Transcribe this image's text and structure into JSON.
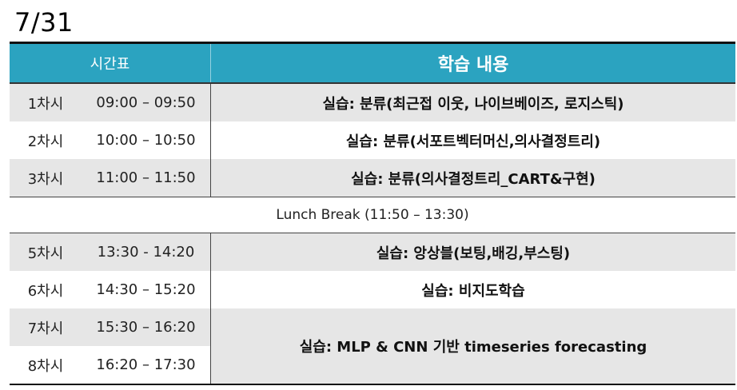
{
  "date": "7/31",
  "header": {
    "schedule": "시간표",
    "content": "학습 내용"
  },
  "rows": [
    {
      "period": "1차시",
      "time": "09:00 – 09:50",
      "content": "실습: 분류(최근접 이웃, 나이브베이즈, 로지스틱)"
    },
    {
      "period": "2차시",
      "time": "10:00 – 10:50",
      "content": "실습: 분류(서포트벡터머신,의사결정트리)"
    },
    {
      "period": "3차시",
      "time": "11:00 – 11:50",
      "content": "실습: 분류(의사결정트리_CART&구현)"
    }
  ],
  "lunch": "Lunch  Break  (11:50 – 13:30)",
  "rows2": [
    {
      "period": "5차시",
      "time": "13:30 - 14:20",
      "content": "실습:  앙상블(보팅,배깅,부스팅)"
    },
    {
      "period": "6차시",
      "time": "14:30 – 15:20",
      "content": "실습:  비지도학습"
    }
  ],
  "merged": {
    "slots": [
      {
        "period": "7차시",
        "time": "15:30 – 16:20"
      },
      {
        "period": "8차시",
        "time": "16:20 – 17:30"
      }
    ],
    "content": "실습:  MLP  &  CNN  기반  timeseries  forecasting"
  }
}
